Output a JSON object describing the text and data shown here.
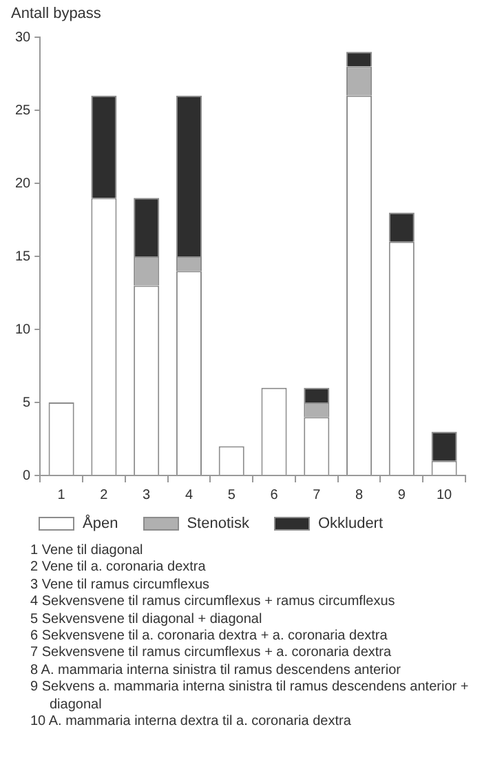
{
  "chart_data": {
    "type": "bar",
    "stacked": true,
    "ylabel": "Antall bypass",
    "categories": [
      "1",
      "2",
      "3",
      "4",
      "5",
      "6",
      "7",
      "8",
      "9",
      "10"
    ],
    "series": [
      {
        "name": "Åpen",
        "color": "#ffffff",
        "values": [
          5,
          19,
          13,
          14,
          2,
          6,
          4,
          26,
          16,
          1
        ]
      },
      {
        "name": "Stenotisk",
        "color": "#b0b0b0",
        "values": [
          null,
          null,
          2,
          1,
          null,
          null,
          1,
          2,
          null,
          null
        ]
      },
      {
        "name": "Okkludert",
        "color": "#2e2e2e",
        "values": [
          null,
          7,
          4,
          11,
          null,
          null,
          1,
          1,
          2,
          2
        ]
      }
    ],
    "ylim": [
      0,
      30
    ],
    "yticks": [
      0,
      5,
      10,
      15,
      20,
      25,
      30
    ],
    "grid": false,
    "legend": "bottom",
    "annotations": [
      "1 Vene til diagonal",
      "2 Vene til a. coronaria dextra",
      "3 Vene til ramus circumflexus",
      "4 Sekvensvene til ramus circumflexus + ramus circumflexus",
      "5 Sekvensvene til diagonal + diagonal",
      "6 Sekvensvene til a. coronaria dextra + a. coronaria dextra",
      "7 Sekvensvene til ramus circumflexus + a. coronaria dextra",
      "8 A. mammaria interna sinistra til ramus descendens anterior",
      "9 Sekvens a. mammaria interna sinistra til ramus descendens anterior + diagonal",
      "10 A. mammaria interna dextra til a. coronaria dextra"
    ]
  }
}
